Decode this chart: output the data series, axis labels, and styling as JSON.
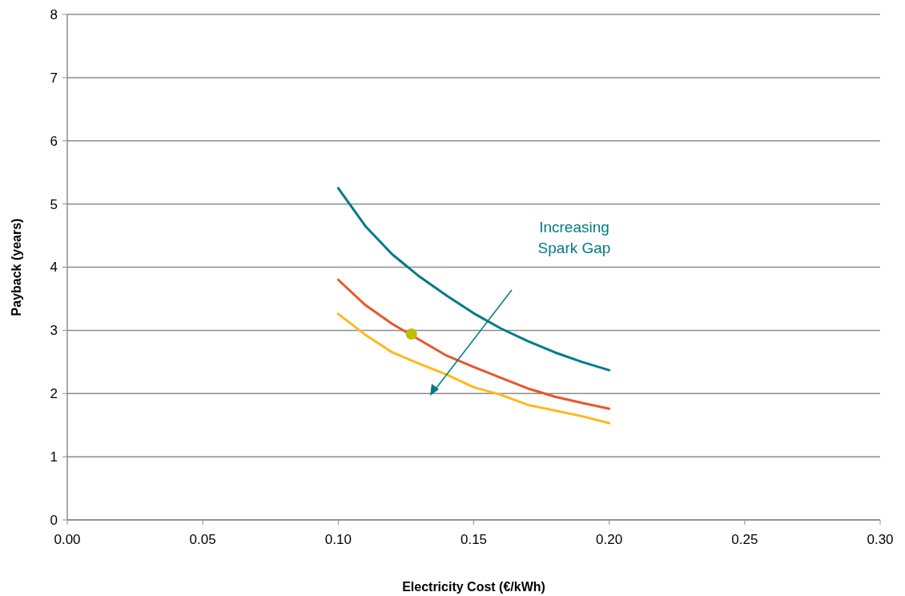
{
  "chart_data": {
    "type": "line",
    "xlabel": "Electricity Cost (€/kWh)",
    "ylabel": "Payback (years)",
    "xlim": [
      0,
      0.3
    ],
    "xticks": [
      {
        "value": 0,
        "label": "0.00"
      },
      {
        "value": 0.05,
        "label": "0.05"
      },
      {
        "value": 0.1,
        "label": "0.10"
      },
      {
        "value": 0.15,
        "label": "0.15"
      },
      {
        "value": 0.2,
        "label": "0.20"
      },
      {
        "value": 0.25,
        "label": "0.25"
      },
      {
        "value": 0.3,
        "label": "0.30"
      }
    ],
    "ylim": [
      0,
      8
    ],
    "yticks": [
      0,
      1,
      2,
      3,
      4,
      5,
      6,
      7,
      8
    ],
    "grid": "y",
    "x": [
      0.1,
      0.11,
      0.12,
      0.13,
      0.14,
      0.15,
      0.16,
      0.17,
      0.18,
      0.19,
      0.2
    ],
    "series": [
      {
        "color": "#007a87",
        "values": [
          5.25,
          4.65,
          4.2,
          3.85,
          3.55,
          3.27,
          3.03,
          2.83,
          2.65,
          2.5,
          2.37
        ]
      },
      {
        "color": "#e8562a",
        "values": [
          3.8,
          3.4,
          3.1,
          2.85,
          2.6,
          2.42,
          2.25,
          2.08,
          1.95,
          1.85,
          1.76
        ]
      },
      {
        "color": "#ffb81c",
        "values": [
          3.26,
          2.93,
          2.65,
          2.47,
          2.3,
          2.1,
          1.98,
          1.82,
          1.73,
          1.64,
          1.53
        ]
      },
      {
        "type": "scatter",
        "color": "#bfbf00",
        "x": [
          0.127
        ],
        "values": [
          2.94
        ]
      }
    ],
    "annotations": [
      "Increasing Spark Gap"
    ]
  }
}
